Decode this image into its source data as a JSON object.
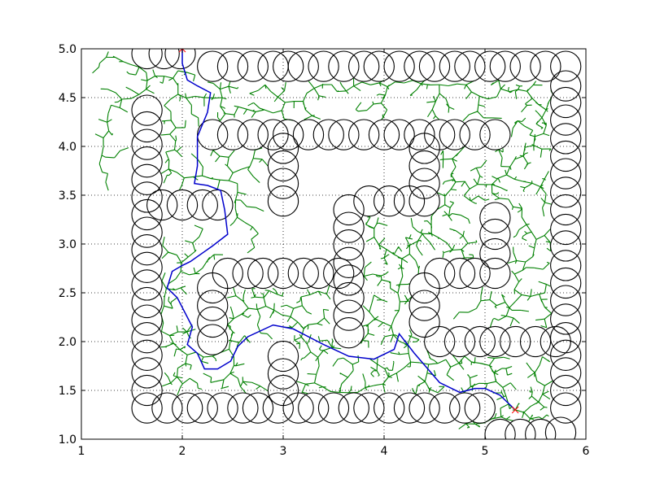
{
  "chart_data": {
    "type": "scatter",
    "title": "",
    "xlabel": "",
    "ylabel": "",
    "xlim": [
      1,
      6
    ],
    "ylim": [
      1.0,
      5.0
    ],
    "xticks": [
      "1",
      "2",
      "3",
      "4",
      "5",
      "6"
    ],
    "yticks": [
      "1.0",
      "1.5",
      "2.0",
      "2.5",
      "3.0",
      "3.5",
      "4.0",
      "4.5",
      "5.0"
    ],
    "grid": true,
    "grid_style": "dotted",
    "obstacle_radius": 0.15,
    "colors": {
      "obstacle": "#000000",
      "tree": "#008000",
      "path": "#0000cc",
      "marker": "#ff0000"
    },
    "start": [
      5.3,
      1.3
    ],
    "goal": [
      2.0,
      5.0
    ],
    "path": [
      [
        5.3,
        1.3
      ],
      [
        5.15,
        1.45
      ],
      [
        5.0,
        1.52
      ],
      [
        4.9,
        1.52
      ],
      [
        4.75,
        1.48
      ],
      [
        4.55,
        1.58
      ],
      [
        4.45,
        1.7
      ],
      [
        4.3,
        1.88
      ],
      [
        4.15,
        2.08
      ],
      [
        4.1,
        1.92
      ],
      [
        3.9,
        1.82
      ],
      [
        3.65,
        1.85
      ],
      [
        3.4,
        1.97
      ],
      [
        3.1,
        2.13
      ],
      [
        2.9,
        2.17
      ],
      [
        2.65,
        2.05
      ],
      [
        2.55,
        1.95
      ],
      [
        2.48,
        1.8
      ],
      [
        2.35,
        1.72
      ],
      [
        2.22,
        1.72
      ],
      [
        2.15,
        1.88
      ],
      [
        2.05,
        1.97
      ],
      [
        2.1,
        2.15
      ],
      [
        1.95,
        2.45
      ],
      [
        1.85,
        2.55
      ],
      [
        1.9,
        2.72
      ],
      [
        2.0,
        2.78
      ],
      [
        2.08,
        2.82
      ],
      [
        2.3,
        2.98
      ],
      [
        2.45,
        3.1
      ],
      [
        2.42,
        3.35
      ],
      [
        2.38,
        3.55
      ],
      [
        2.25,
        3.6
      ],
      [
        2.12,
        3.62
      ],
      [
        2.15,
        3.8
      ],
      [
        2.15,
        4.1
      ],
      [
        2.25,
        4.35
      ],
      [
        2.28,
        4.55
      ],
      [
        2.15,
        4.62
      ],
      [
        2.05,
        4.68
      ],
      [
        2.0,
        4.85
      ],
      [
        2.0,
        5.0
      ]
    ],
    "obstacles": [
      [
        1.65,
        4.95
      ],
      [
        1.82,
        4.95
      ],
      [
        1.98,
        4.95
      ],
      [
        2.3,
        4.82
      ],
      [
        2.5,
        4.82
      ],
      [
        2.7,
        4.82
      ],
      [
        2.9,
        4.82
      ],
      [
        3.05,
        4.82
      ],
      [
        3.2,
        4.82
      ],
      [
        3.4,
        4.82
      ],
      [
        3.6,
        4.82
      ],
      [
        3.8,
        4.82
      ],
      [
        3.95,
        4.82
      ],
      [
        4.15,
        4.82
      ],
      [
        4.35,
        4.82
      ],
      [
        4.5,
        4.82
      ],
      [
        4.7,
        4.82
      ],
      [
        4.85,
        4.82
      ],
      [
        5.05,
        4.82
      ],
      [
        5.2,
        4.82
      ],
      [
        5.4,
        4.82
      ],
      [
        5.6,
        4.82
      ],
      [
        5.8,
        4.82
      ],
      [
        5.8,
        4.62
      ],
      [
        5.8,
        4.45
      ],
      [
        5.8,
        4.27
      ],
      [
        5.8,
        4.08
      ],
      [
        5.8,
        3.9
      ],
      [
        5.8,
        3.72
      ],
      [
        5.8,
        3.53
      ],
      [
        5.8,
        3.35
      ],
      [
        5.8,
        3.15
      ],
      [
        5.8,
        2.98
      ],
      [
        5.8,
        2.78
      ],
      [
        5.8,
        2.6
      ],
      [
        5.8,
        2.42
      ],
      [
        5.8,
        2.23
      ],
      [
        5.8,
        2.04
      ],
      [
        5.8,
        1.86
      ],
      [
        5.8,
        1.68
      ],
      [
        5.8,
        1.5
      ],
      [
        5.8,
        1.32
      ],
      [
        5.75,
        1.07
      ],
      [
        5.55,
        1.05
      ],
      [
        5.35,
        1.05
      ],
      [
        5.15,
        1.05
      ],
      [
        1.65,
        4.37
      ],
      [
        1.65,
        4.2
      ],
      [
        1.65,
        4.02
      ],
      [
        1.65,
        3.84
      ],
      [
        1.65,
        3.66
      ],
      [
        1.65,
        3.48
      ],
      [
        1.65,
        3.3
      ],
      [
        1.65,
        3.12
      ],
      [
        1.65,
        2.94
      ],
      [
        1.65,
        2.76
      ],
      [
        1.65,
        2.58
      ],
      [
        1.65,
        2.4
      ],
      [
        1.65,
        2.22
      ],
      [
        1.65,
        2.04
      ],
      [
        1.65,
        1.86
      ],
      [
        1.65,
        1.68
      ],
      [
        1.65,
        1.5
      ],
      [
        1.65,
        1.32
      ],
      [
        1.85,
        1.32
      ],
      [
        2.05,
        1.32
      ],
      [
        2.2,
        1.32
      ],
      [
        2.4,
        1.32
      ],
      [
        2.6,
        1.32
      ],
      [
        2.75,
        1.32
      ],
      [
        2.95,
        1.32
      ],
      [
        3.15,
        1.32
      ],
      [
        3.3,
        1.32
      ],
      [
        3.5,
        1.32
      ],
      [
        3.7,
        1.32
      ],
      [
        3.85,
        1.32
      ],
      [
        4.05,
        1.32
      ],
      [
        4.25,
        1.32
      ],
      [
        4.4,
        1.32
      ],
      [
        4.6,
        1.32
      ],
      [
        4.8,
        1.32
      ],
      [
        4.95,
        1.32
      ],
      [
        2.3,
        4.12
      ],
      [
        2.5,
        4.12
      ],
      [
        2.7,
        4.12
      ],
      [
        2.9,
        4.12
      ],
      [
        3.05,
        4.12
      ],
      [
        3.25,
        4.12
      ],
      [
        3.45,
        4.12
      ],
      [
        3.6,
        4.12
      ],
      [
        3.8,
        4.12
      ],
      [
        4.0,
        4.12
      ],
      [
        4.15,
        4.12
      ],
      [
        4.35,
        4.12
      ],
      [
        4.55,
        4.12
      ],
      [
        4.7,
        4.12
      ],
      [
        4.9,
        4.12
      ],
      [
        5.1,
        4.12
      ],
      [
        3.0,
        3.98
      ],
      [
        3.0,
        3.8
      ],
      [
        3.0,
        3.62
      ],
      [
        3.0,
        3.44
      ],
      [
        4.4,
        3.98
      ],
      [
        4.4,
        3.8
      ],
      [
        4.4,
        3.62
      ],
      [
        4.4,
        3.44
      ],
      [
        1.8,
        3.4
      ],
      [
        2.0,
        3.4
      ],
      [
        2.2,
        3.4
      ],
      [
        2.35,
        3.4
      ],
      [
        3.85,
        3.44
      ],
      [
        4.05,
        3.44
      ],
      [
        4.25,
        3.44
      ],
      [
        3.65,
        3.35
      ],
      [
        3.65,
        3.17
      ],
      [
        3.65,
        2.99
      ],
      [
        3.65,
        2.81
      ],
      [
        3.65,
        2.63
      ],
      [
        3.65,
        2.45
      ],
      [
        3.65,
        2.27
      ],
      [
        3.65,
        2.09
      ],
      [
        2.45,
        2.7
      ],
      [
        2.65,
        2.7
      ],
      [
        2.8,
        2.7
      ],
      [
        3.0,
        2.7
      ],
      [
        3.2,
        2.7
      ],
      [
        3.35,
        2.7
      ],
      [
        3.55,
        2.7
      ],
      [
        2.3,
        2.55
      ],
      [
        2.3,
        2.37
      ],
      [
        2.3,
        2.2
      ],
      [
        2.3,
        2.02
      ],
      [
        3.0,
        1.85
      ],
      [
        3.0,
        1.67
      ],
      [
        3.0,
        1.5
      ],
      [
        4.55,
        2.7
      ],
      [
        4.75,
        2.7
      ],
      [
        4.9,
        2.7
      ],
      [
        5.1,
        2.7
      ],
      [
        5.1,
        3.27
      ],
      [
        5.1,
        3.1
      ],
      [
        5.1,
        2.9
      ],
      [
        4.4,
        2.55
      ],
      [
        4.4,
        2.37
      ],
      [
        4.4,
        2.2
      ],
      [
        4.55,
        2.0
      ],
      [
        4.75,
        2.0
      ],
      [
        4.95,
        2.0
      ],
      [
        5.1,
        2.0
      ],
      [
        5.3,
        2.0
      ],
      [
        5.5,
        2.0
      ],
      [
        5.7,
        2.0
      ]
    ]
  }
}
